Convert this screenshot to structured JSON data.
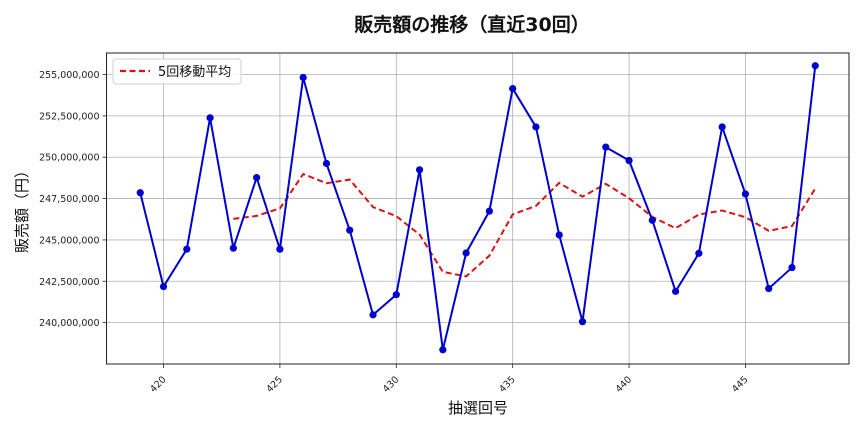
{
  "chart_data": {
    "type": "line",
    "title": "販売額の推移（直近30回）",
    "xlabel": "抽選回号",
    "ylabel": "販売額（円）",
    "x": [
      419,
      420,
      421,
      422,
      423,
      424,
      425,
      426,
      427,
      428,
      429,
      430,
      431,
      432,
      433,
      434,
      435,
      436,
      437,
      438,
      439,
      440,
      441,
      442,
      443,
      444,
      445,
      446,
      447,
      448
    ],
    "series": [
      {
        "name": "販売額",
        "color": "#0000cc",
        "style": "solid",
        "marker": "circle",
        "values": [
          247850000,
          242180000,
          244440000,
          252380000,
          244500000,
          248770000,
          244440000,
          254820000,
          249620000,
          245590000,
          240470000,
          241690000,
          249240000,
          238360000,
          244210000,
          246740000,
          254150000,
          251830000,
          245300000,
          240060000,
          250610000,
          249800000,
          246190000,
          241890000,
          244190000,
          251830000,
          247780000,
          242060000,
          243330000,
          255530000
        ]
      },
      {
        "name": "5回移動平均",
        "color": "#dd1111",
        "style": "dashed",
        "window": 5,
        "in_legend": true
      }
    ],
    "xticks": [
      420,
      425,
      430,
      435,
      440,
      445
    ],
    "xtick_rotation": -45,
    "yticks": [
      240000000,
      242500000,
      245000000,
      247500000,
      250000000,
      252500000,
      255000000
    ],
    "ytick_labels": [
      "240,000,000",
      "242,500,000",
      "245,000,000",
      "247,500,000",
      "250,000,000",
      "252,500,000",
      "255,000,000"
    ],
    "xlim": [
      417.55,
      449.45
    ],
    "ylim": [
      237500000,
      256300000
    ],
    "grid": true,
    "legend_position": "upper left"
  },
  "colors": {
    "grid": "#b0b0b0",
    "axis": "#222222",
    "sales_line": "#0000cc",
    "moving_average": "#dd1111"
  }
}
